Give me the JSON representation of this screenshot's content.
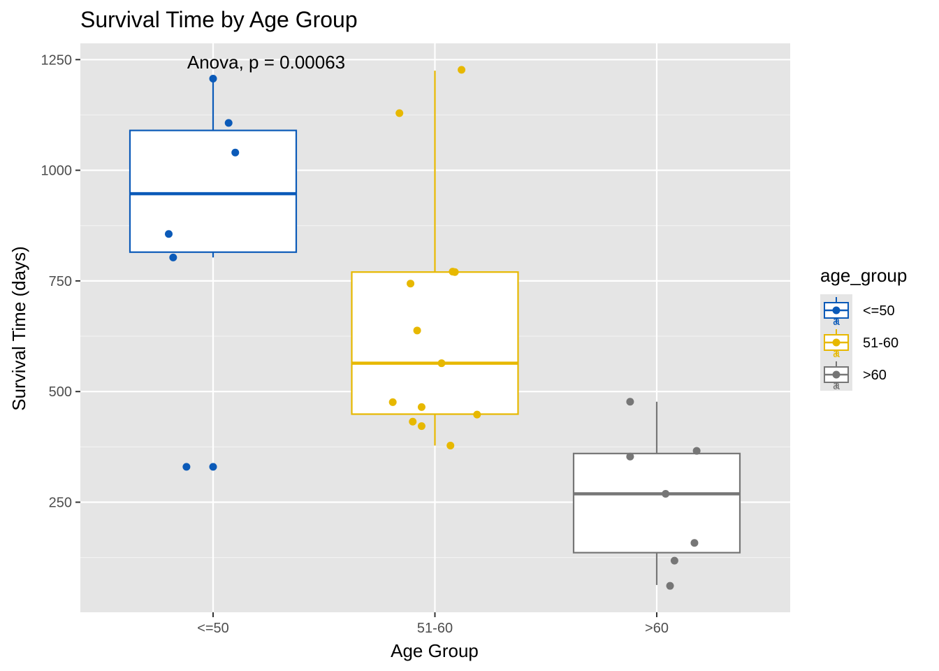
{
  "chart_data": {
    "type": "boxplot",
    "title": "Survival Time by Age Group",
    "xlabel": "Age Group",
    "ylabel": "Survival Time (days)",
    "annotation": "Anova, p = 0.00063",
    "categories": [
      "<=50",
      "51-60",
      ">60"
    ],
    "y_ticks": [
      250,
      500,
      750,
      1000,
      1250
    ],
    "ylim": [
      0,
      1250
    ],
    "grid": true,
    "legend": {
      "title": "age_group",
      "placement": "right",
      "glyph_letter": "a"
    },
    "series": [
      {
        "name": "<=50",
        "color": "#0b5ab8",
        "box": {
          "whisker_low": 803,
          "q1": 815,
          "median": 947,
          "q3": 1090,
          "whisker_high": 1207
        },
        "points": [
          {
            "x": -0.2,
            "y": 856
          },
          {
            "x": -0.18,
            "y": 803
          },
          {
            "x": 0.0,
            "y": 1207
          },
          {
            "x": 0.07,
            "y": 1107
          },
          {
            "x": 0.1,
            "y": 1040
          },
          {
            "x": -0.12,
            "y": 330
          },
          {
            "x": 0.0,
            "y": 330
          }
        ]
      },
      {
        "name": "51-60",
        "color": "#e7b800",
        "box": {
          "whisker_low": 378,
          "q1": 449,
          "median": 564,
          "q3": 770,
          "whisker_high": 1225
        },
        "points": [
          {
            "x": 0.12,
            "y": 1227
          },
          {
            "x": -0.16,
            "y": 1129
          },
          {
            "x": 0.08,
            "y": 771
          },
          {
            "x": 0.09,
            "y": 770
          },
          {
            "x": -0.11,
            "y": 744
          },
          {
            "x": -0.08,
            "y": 638
          },
          {
            "x": 0.03,
            "y": 564
          },
          {
            "x": -0.19,
            "y": 476
          },
          {
            "x": -0.06,
            "y": 465
          },
          {
            "x": 0.19,
            "y": 448
          },
          {
            "x": -0.1,
            "y": 432
          },
          {
            "x": -0.06,
            "y": 422
          },
          {
            "x": 0.07,
            "y": 378
          }
        ]
      },
      {
        "name": ">60",
        "color": "#767676",
        "box": {
          "whisker_low": 63,
          "q1": 136,
          "median": 269,
          "q3": 360,
          "whisker_high": 477
        },
        "points": [
          {
            "x": -0.12,
            "y": 477
          },
          {
            "x": -0.12,
            "y": 353
          },
          {
            "x": 0.18,
            "y": 366
          },
          {
            "x": 0.04,
            "y": 269
          },
          {
            "x": 0.17,
            "y": 158
          },
          {
            "x": 0.08,
            "y": 118
          },
          {
            "x": 0.06,
            "y": 61
          }
        ]
      }
    ]
  }
}
